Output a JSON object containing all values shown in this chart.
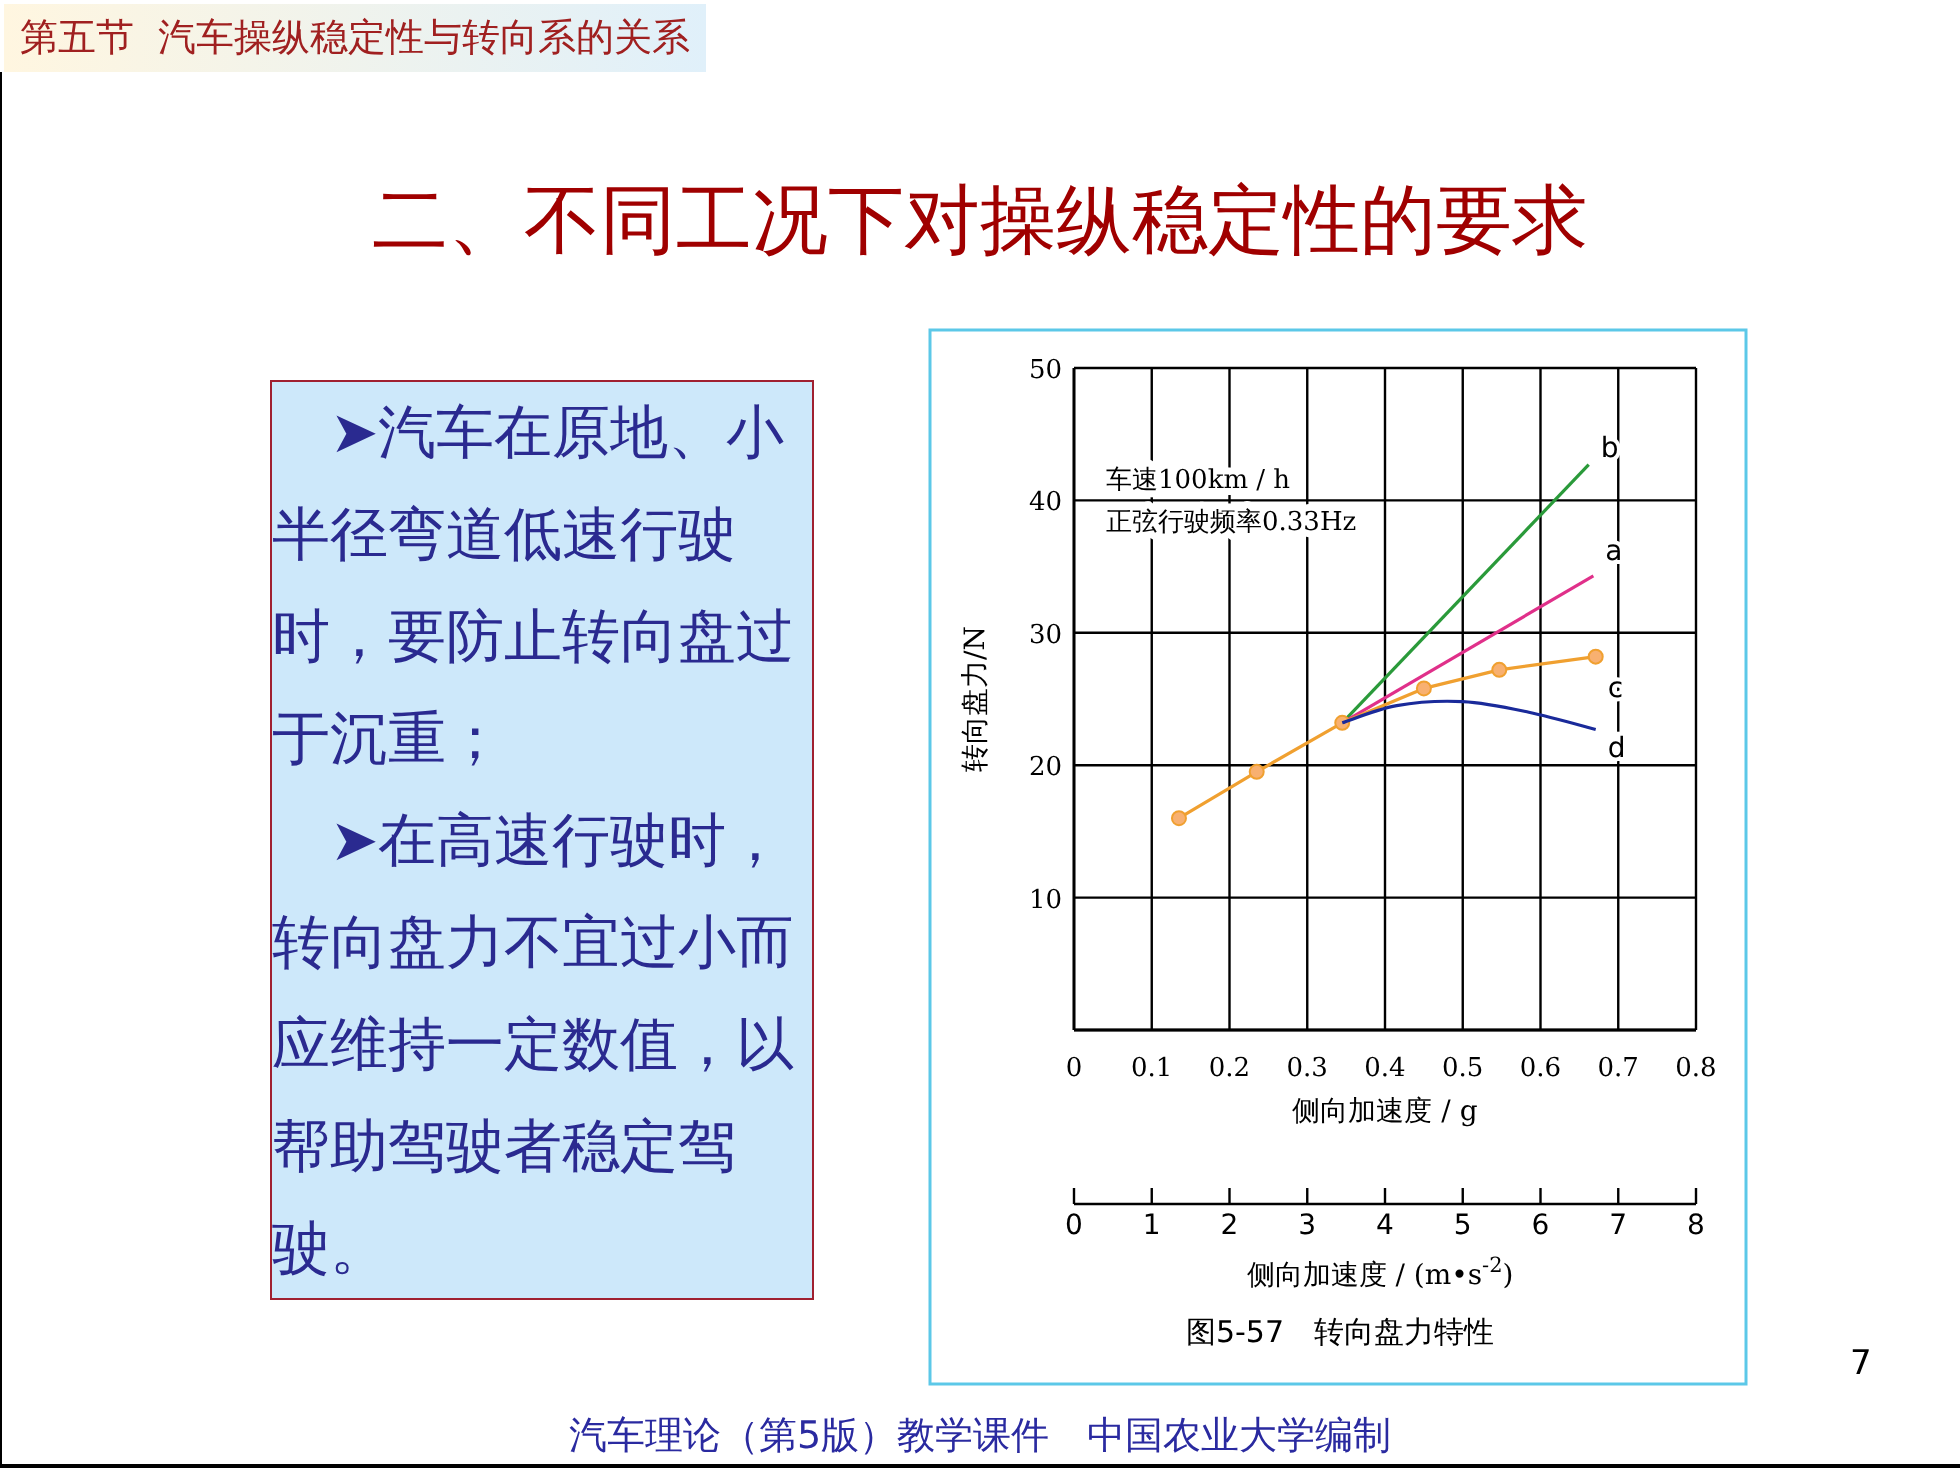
{
  "chart_data": {
    "type": "line",
    "title": "二、不同工况下对操纵稳定性的要求",
    "xlabel": "侧向加速度 / g",
    "ylabel": "转向盘力/N",
    "x2label": "侧向加速度 / (m•s$^{-2}$)",
    "xlim": [
      0,
      0.8
    ],
    "xticks": [
      0,
      0.1,
      0.2,
      0.3,
      0.4,
      0.5,
      0.6,
      0.7,
      0.8
    ],
    "ylim": [
      0,
      50
    ],
    "yticks": [
      {
        "value": 0,
        "label": null
      },
      10,
      20,
      30,
      40,
      50
    ],
    "x2lim": [
      0,
      8
    ],
    "x2ticks": [
      0,
      1,
      2,
      3,
      4,
      5,
      6,
      7,
      8
    ],
    "grid": true,
    "series": [
      {
        "name": "b",
        "color": "#2a9a3a",
        "marker": "none",
        "x": [
          0.345,
          0.662
        ],
        "values": [
          23.2,
          42.7
        ]
      },
      {
        "name": "a",
        "color": "#e0308a",
        "marker": "none",
        "x": [
          0.345,
          0.668
        ],
        "values": [
          23.2,
          34.3
        ]
      },
      {
        "name": "c",
        "color": "#f0a030",
        "marker": "circle",
        "x": [
          0.135,
          0.235,
          0.345,
          0.45,
          0.547,
          0.671
        ],
        "values": [
          16,
          19.5,
          23.2,
          25.8,
          27.2,
          28.2
        ]
      },
      {
        "name": "d",
        "color": "#1a2a9a",
        "marker": "none",
        "x": [
          0.345,
          0.415,
          0.5,
          0.585,
          0.671
        ],
        "values": [
          23.2,
          24.5,
          24.8,
          24.0,
          22.7
        ]
      }
    ],
    "annotations": [
      "第五节  汽车操纵稳定性与转向系的关系",
      "车速100km / h",
      "正弦行驶频率0.33Hz",
      "➤汽车在原地、小半径弯道低速行驶时，要防止转向盘过于沉重；",
      "➤在高速行驶时，转向盘力不宜过小而应维持一定数值，以帮助驾驶者稳定驾驶。",
      "图5-57　转向盘力特性",
      "7",
      "汽车理论（第5版）教学课件　中国农业大学编制"
    ]
  }
}
